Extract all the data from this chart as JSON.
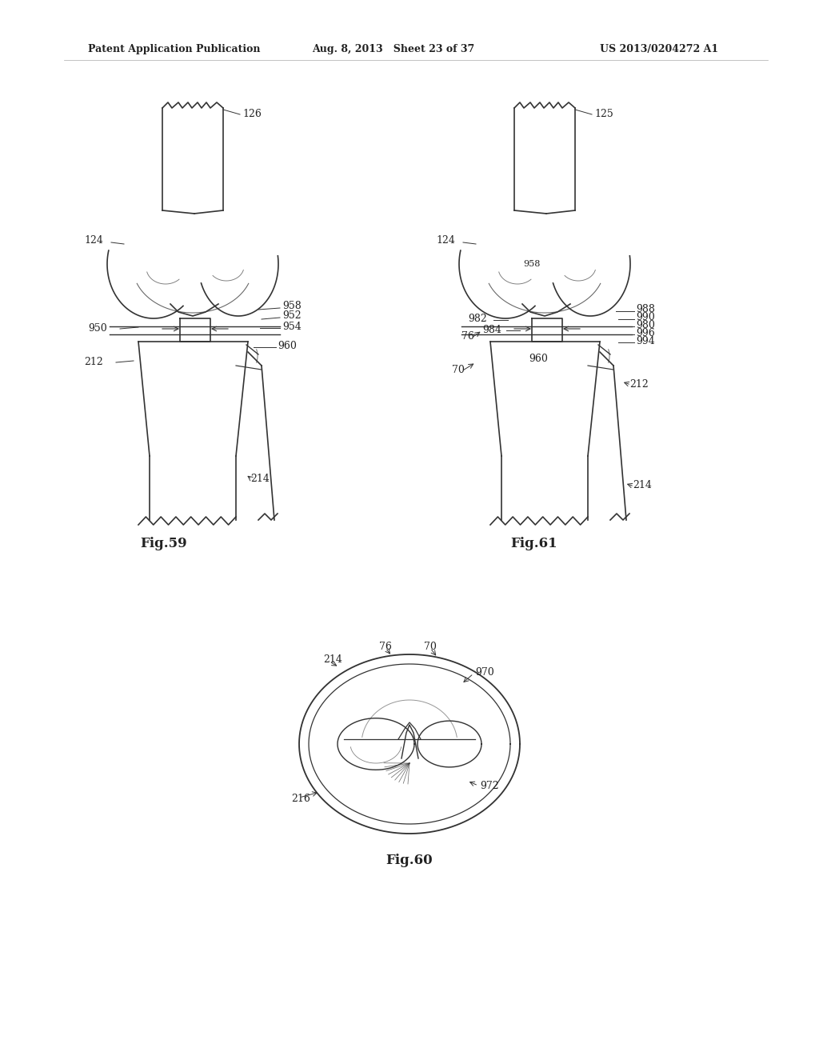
{
  "bg_color": "#ffffff",
  "header_left": "Patent Application Publication",
  "header_mid": "Aug. 8, 2013   Sheet 23 of 37",
  "header_right": "US 2013/0204272 A1",
  "fig59_label": "Fig.59",
  "fig60_label": "Fig.60",
  "fig61_label": "Fig.61",
  "text_color": "#222222",
  "line_color": "#333333"
}
